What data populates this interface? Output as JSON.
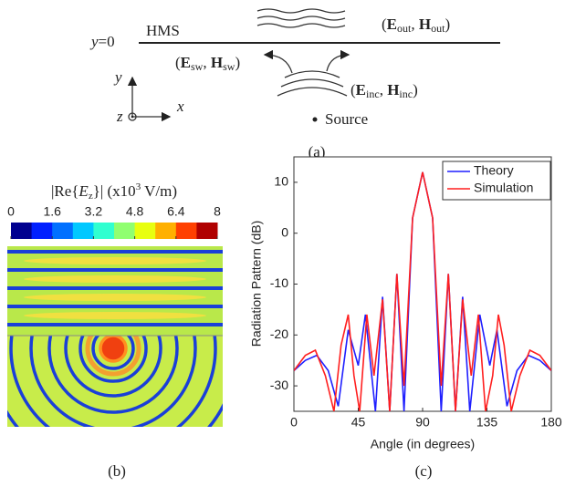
{
  "panel_a": {
    "boundary": [
      "y",
      "=0"
    ],
    "surface": "HMS",
    "outgoing": [
      "(",
      "E",
      "out",
      ", ",
      "H",
      "out",
      ")"
    ],
    "surface_wave": [
      "(",
      "E",
      "sw",
      ", ",
      "H",
      "sw",
      ")"
    ],
    "incident": [
      "(",
      "E",
      "inc",
      ", ",
      "H",
      "inc",
      ")"
    ],
    "source": "Source",
    "axis_y": "y",
    "axis_x": "x",
    "axis_z": "z",
    "label": "(a)"
  },
  "panel_b": {
    "colorbar_title": [
      "|Re{",
      "E",
      "z",
      "}| (x10",
      "3",
      " V/m)"
    ],
    "colorbar_lim": [
      0,
      8
    ],
    "colorbar_ticks": [
      0,
      1.6,
      3.2,
      4.8,
      6.4,
      8
    ],
    "label": "(b)"
  },
  "chart_data": {
    "type": "line",
    "xlabel": "Angle (in degrees)",
    "ylabel": "Radiation Pattern (dB)",
    "xlim": [
      0,
      180
    ],
    "ylim": [
      -35,
      15
    ],
    "xticks": [
      0,
      45,
      90,
      135,
      180
    ],
    "yticks": [
      -30,
      -20,
      -10,
      0,
      10
    ],
    "legend": "top-right",
    "series": [
      {
        "name": "Theory",
        "color": "#1f1fff",
        "x": [
          0,
          8,
          16,
          24,
          31,
          38,
          45,
          50,
          57,
          62,
          67,
          72,
          77,
          83,
          90,
          97,
          103,
          108,
          113,
          118,
          123,
          130,
          137,
          142,
          149,
          156,
          164,
          172,
          180
        ],
        "values": [
          -27,
          -25,
          -24,
          -27,
          -34,
          -19,
          -26,
          -16,
          -35,
          -12.5,
          -35,
          -8,
          -35,
          3,
          12,
          3,
          -35,
          -8,
          -35,
          -12.5,
          -35,
          -16,
          -26,
          -19,
          -34,
          -27,
          -24,
          -25,
          -27
        ]
      },
      {
        "name": "Simulation",
        "color": "#ff1f1f",
        "x": [
          0,
          8,
          15,
          22,
          28,
          33,
          38,
          42,
          46,
          51,
          56,
          62,
          67,
          72,
          77,
          83,
          90,
          97,
          103,
          108,
          113,
          118,
          124,
          129,
          134,
          139,
          143,
          147,
          152,
          158,
          165,
          172,
          180
        ],
        "values": [
          -27,
          -24,
          -23,
          -28,
          -35,
          -22,
          -16,
          -28,
          -35,
          -16,
          -28,
          -13,
          -35,
          -8,
          -30,
          3,
          12,
          3,
          -30,
          -8,
          -35,
          -13,
          -28,
          -16,
          -35,
          -28,
          -16,
          -22,
          -35,
          -28,
          -23,
          -24,
          -27
        ]
      }
    ]
  },
  "panel_c_label": "(c)"
}
